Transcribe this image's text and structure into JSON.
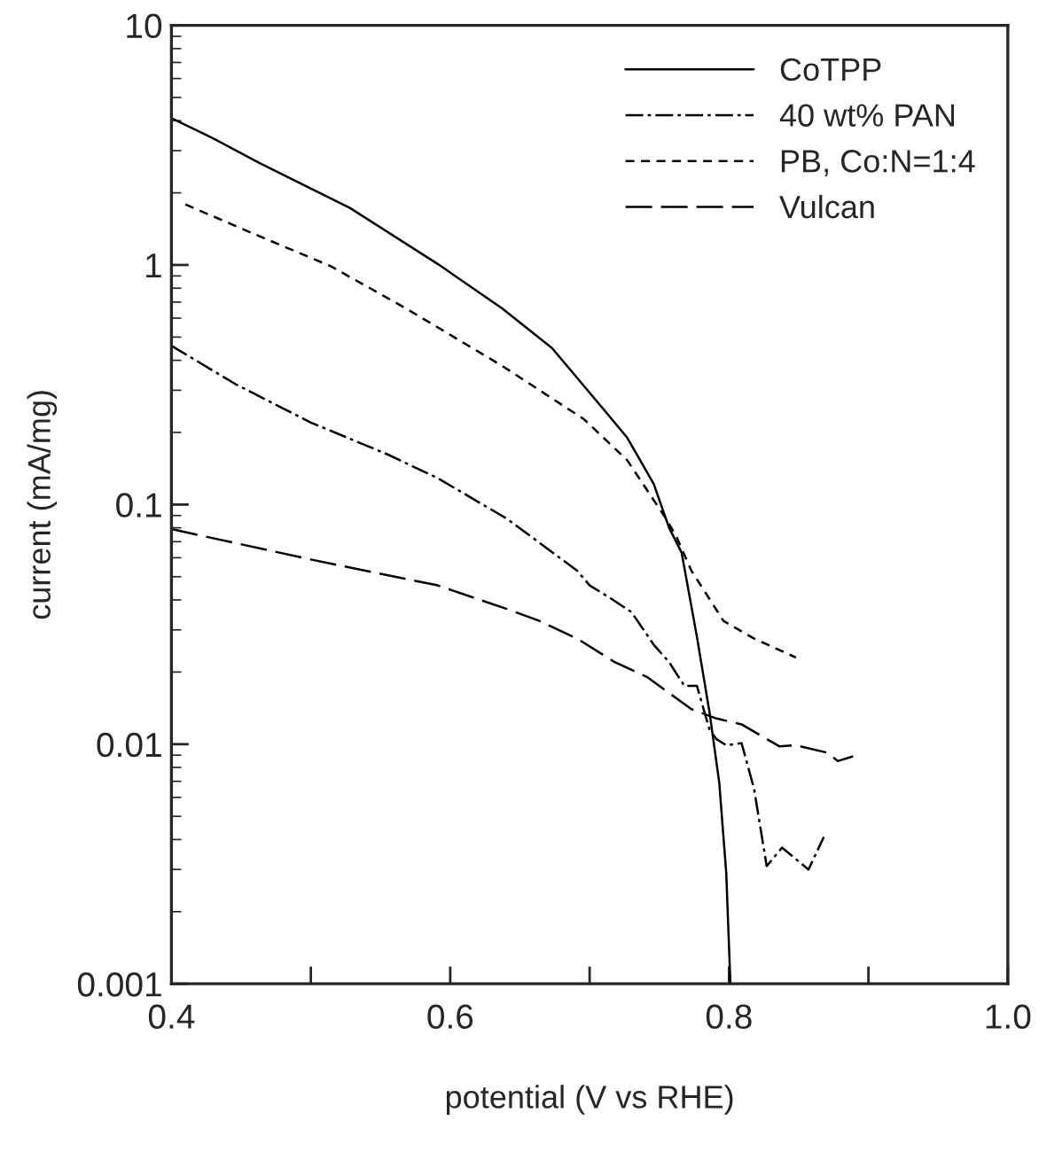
{
  "chart_data": {
    "type": "line",
    "xlabel": "potential (V vs RHE)",
    "ylabel": "current (mA/mg)",
    "log": "y",
    "grid": false,
    "legend": "top right",
    "marker": "none",
    "xlim": [
      0.4,
      1.0
    ],
    "xticks": [
      0.4,
      {
        "value": 0.5,
        "label": null
      },
      0.6,
      {
        "value": 0.7,
        "label": null
      },
      0.8,
      {
        "value": 0.9,
        "label": null
      },
      {
        "value": 1.0,
        "label": "1.0"
      }
    ],
    "ylim": [
      0.001,
      10
    ],
    "yticks": [
      0.001,
      0.01,
      0.1,
      1,
      10
    ],
    "series": [
      {
        "name": "CoTPP",
        "color": "#000000",
        "line_style": "solid",
        "x": [
          0.4,
          0.428,
          0.464,
          0.528,
          0.591,
          0.637,
          0.673,
          0.709,
          0.727,
          0.746,
          0.757,
          0.766,
          0.777,
          0.786,
          0.793,
          0.798,
          0.801
        ],
        "values": [
          4.1,
          3.42,
          2.65,
          1.73,
          1.01,
          0.66,
          0.45,
          0.254,
          0.19,
          0.122,
          0.08,
          0.063,
          0.028,
          0.0136,
          0.0069,
          0.0029,
          0.001
        ]
      },
      {
        "name": "40 wt% PAN",
        "color": "#000000",
        "line_style": "dashdot",
        "x": [
          0.4,
          0.446,
          0.5,
          0.555,
          0.591,
          0.641,
          0.691,
          0.7,
          0.714,
          0.73,
          0.746,
          0.757,
          0.768,
          0.777,
          0.786,
          0.791,
          0.798,
          0.809,
          0.818,
          0.827,
          0.838,
          0.857,
          0.868
        ],
        "values": [
          0.46,
          0.318,
          0.22,
          0.162,
          0.129,
          0.087,
          0.053,
          0.046,
          0.041,
          0.0356,
          0.026,
          0.022,
          0.0175,
          0.0175,
          0.0115,
          0.0105,
          0.0099,
          0.0101,
          0.0065,
          0.0031,
          0.0037,
          0.003,
          0.0041
        ]
      },
      {
        "name": "PB, Co:N=1:4",
        "color": "#000000",
        "line_style": "dashed",
        "x": [
          0.41,
          0.455,
          0.514,
          0.568,
          0.637,
          0.696,
          0.727,
          0.755,
          0.762,
          0.773,
          0.796,
          0.818,
          0.848
        ],
        "values": [
          1.79,
          1.38,
          0.99,
          0.66,
          0.38,
          0.227,
          0.153,
          0.087,
          0.074,
          0.053,
          0.0327,
          0.0276,
          0.023
        ]
      },
      {
        "name": "Vulcan",
        "color": "#000000",
        "line_style": "longdash",
        "x": [
          0.4,
          0.5,
          0.591,
          0.641,
          0.664,
          0.691,
          0.718,
          0.741,
          0.773,
          0.791,
          0.809,
          0.836,
          0.848,
          0.871,
          0.878,
          0.889
        ],
        "values": [
          0.079,
          0.059,
          0.046,
          0.0366,
          0.0327,
          0.0276,
          0.022,
          0.0191,
          0.014,
          0.0128,
          0.0121,
          0.0098,
          0.0099,
          0.0092,
          0.0085,
          0.0089
        ]
      }
    ]
  }
}
